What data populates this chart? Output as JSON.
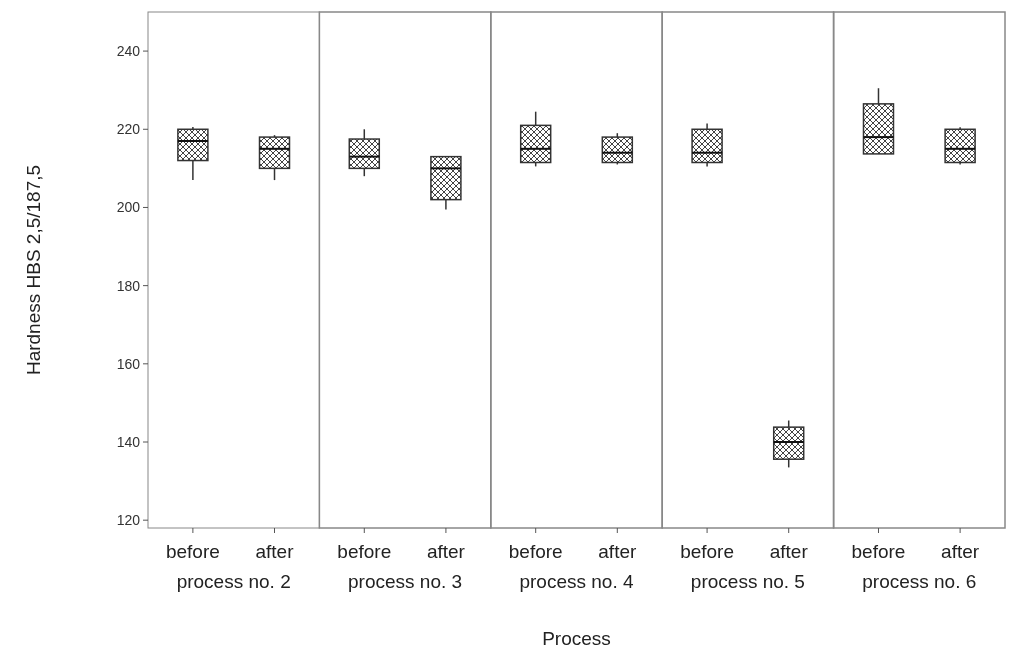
{
  "chart_data": [
    {
      "type": "box",
      "xlabel": "process no. 2",
      "ylabel": "Hardness  HBS 2,5/187,5",
      "annotations": [
        "Process"
      ],
      "categories": [
        "before",
        "after"
      ],
      "ylim": [
        118,
        250
      ],
      "yticks": [
        120,
        140,
        160,
        180,
        200,
        220,
        240
      ],
      "boxes": [
        {
          "low": 207,
          "q1": 212,
          "median": 217,
          "q3": 220,
          "high": 220.6
        },
        {
          "low": 207,
          "q1": 210,
          "median": 215,
          "q3": 218,
          "high": 218.5
        }
      ]
    },
    {
      "type": "box",
      "xlabel": "process no. 3",
      "tick_labels": "x",
      "categories": [
        "before",
        "after"
      ],
      "ylim": [
        118,
        250
      ],
      "boxes": [
        {
          "low": 208,
          "q1": 210,
          "median": 213,
          "q3": 217.5,
          "high": 220
        },
        {
          "low": 199.5,
          "q1": 202,
          "median": 210,
          "q3": 213,
          "high": 213
        }
      ]
    },
    {
      "type": "box",
      "xlabel": "process no. 4",
      "tick_labels": "x",
      "categories": [
        "before",
        "after"
      ],
      "ylim": [
        118,
        250
      ],
      "boxes": [
        {
          "low": 210.5,
          "q1": 211.5,
          "median": 215,
          "q3": 221,
          "high": 224.5
        },
        {
          "low": 211,
          "q1": 211.5,
          "median": 214,
          "q3": 218,
          "high": 219
        }
      ]
    },
    {
      "type": "box",
      "xlabel": "process no. 5",
      "tick_labels": "x",
      "categories": [
        "before",
        "after"
      ],
      "ylim": [
        118,
        250
      ],
      "boxes": [
        {
          "low": 210.5,
          "q1": 211.5,
          "median": 214,
          "q3": 220,
          "high": 221.5
        },
        {
          "low": 133.5,
          "q1": 135.6,
          "median": 140,
          "q3": 143.8,
          "high": 145.5
        }
      ]
    },
    {
      "type": "box",
      "xlabel": "process no. 6",
      "tick_labels": "x",
      "categories": [
        "before",
        "after"
      ],
      "ylim": [
        118,
        250
      ],
      "boxes": [
        {
          "low": 213.7,
          "q1": 213.7,
          "median": 218,
          "q3": 226.5,
          "high": 230.5
        },
        {
          "low": 211,
          "q1": 211.5,
          "median": 215,
          "q3": 220,
          "high": 220.5
        }
      ]
    }
  ]
}
